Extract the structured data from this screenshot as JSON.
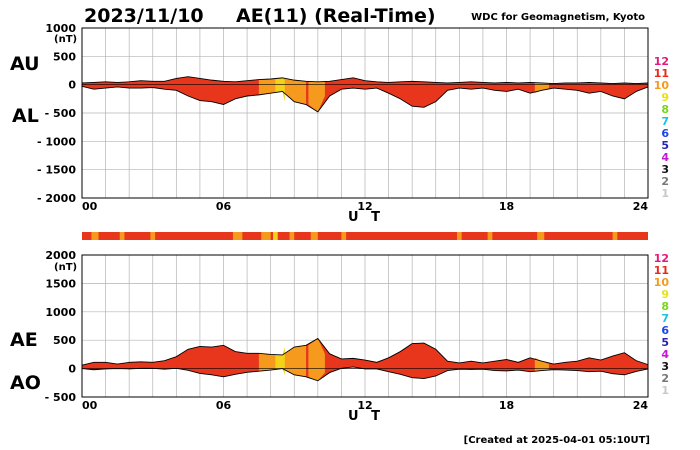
{
  "header": {
    "date": "2023/11/10",
    "title": "AE(11) (Real-Time)",
    "source": "WDC for Geomagnetism, Kyoto"
  },
  "footer": {
    "created": "[Created at 2025-04-01 05:10UT]"
  },
  "legend": {
    "levels": [
      {
        "label": "12",
        "color": "#e4197c"
      },
      {
        "label": "11",
        "color": "#e82a18"
      },
      {
        "label": "10",
        "color": "#f59a1c"
      },
      {
        "label": "9",
        "color": "#e6e21a"
      },
      {
        "label": "8",
        "color": "#78d61a"
      },
      {
        "label": "7",
        "color": "#1ac2e6"
      },
      {
        "label": "6",
        "color": "#1a46e6"
      },
      {
        "label": "5",
        "color": "#2a24b4"
      },
      {
        "label": "4",
        "color": "#c41ad6"
      },
      {
        "label": "3",
        "color": "#111111"
      },
      {
        "label": "2",
        "color": "#777777"
      },
      {
        "label": "1",
        "color": "#c8c8c8"
      }
    ]
  },
  "colors": {
    "fill_main": "#e8361c",
    "fill_mid": "#f59a1c",
    "fill_low": "#f4d21a",
    "grid": "#b4b4b4"
  },
  "chart_data": [
    {
      "type": "area",
      "panel_labels": [
        "AU",
        "AL"
      ],
      "ylabel": "(nT)",
      "xlabel": "U T",
      "x_ticks": [
        "00",
        "06",
        "12",
        "18",
        "24"
      ],
      "y_ticks": [
        "1000",
        "500",
        "0",
        "- 500",
        "- 1000",
        "- 1500",
        "- 2000"
      ],
      "xlim": [
        0,
        24
      ],
      "ylim": [
        -2000,
        1000
      ],
      "grid": true,
      "x": [
        0,
        0.5,
        1,
        1.5,
        2,
        2.5,
        3,
        3.5,
        4,
        4.5,
        5,
        5.5,
        6,
        6.5,
        7,
        7.5,
        8,
        8.5,
        9,
        9.5,
        10,
        10.5,
        11,
        11.5,
        12,
        12.5,
        13,
        13.5,
        14,
        14.5,
        15,
        15.5,
        16,
        16.5,
        17,
        17.5,
        18,
        18.5,
        19,
        19.5,
        20,
        20.5,
        21,
        21.5,
        22,
        22.5,
        23,
        23.5,
        24
      ],
      "series": [
        {
          "name": "AU",
          "values": [
            30,
            40,
            50,
            40,
            50,
            70,
            60,
            60,
            110,
            140,
            110,
            80,
            60,
            50,
            70,
            90,
            100,
            120,
            80,
            60,
            50,
            60,
            90,
            120,
            70,
            50,
            40,
            50,
            60,
            50,
            40,
            30,
            40,
            50,
            40,
            30,
            40,
            30,
            40,
            30,
            20,
            30,
            30,
            40,
            30,
            20,
            30,
            20,
            30
          ]
        },
        {
          "name": "AL",
          "values": [
            -30,
            -80,
            -60,
            -40,
            -60,
            -60,
            -50,
            -80,
            -100,
            -200,
            -280,
            -300,
            -350,
            -250,
            -200,
            -180,
            -150,
            -120,
            -300,
            -350,
            -480,
            -200,
            -80,
            -60,
            -80,
            -60,
            -150,
            -250,
            -380,
            -400,
            -300,
            -100,
            -60,
            -80,
            -60,
            -100,
            -120,
            -80,
            -150,
            -100,
            -60,
            -80,
            -100,
            -150,
            -120,
            -200,
            -250,
            -120,
            -40
          ]
        }
      ]
    },
    {
      "type": "area",
      "panel_labels": [
        "AE",
        "AO"
      ],
      "ylabel": "(nT)",
      "xlabel": "U T",
      "x_ticks": [
        "00",
        "06",
        "12",
        "18",
        "24"
      ],
      "y_ticks": [
        "2000",
        "1500",
        "1000",
        "500",
        "0",
        "- 500"
      ],
      "xlim": [
        0,
        24
      ],
      "ylim": [
        -500,
        2000
      ],
      "grid": true,
      "x": [
        0,
        0.5,
        1,
        1.5,
        2,
        2.5,
        3,
        3.5,
        4,
        4.5,
        5,
        5.5,
        6,
        6.5,
        7,
        7.5,
        8,
        8.5,
        9,
        9.5,
        10,
        10.5,
        11,
        11.5,
        12,
        12.5,
        13,
        13.5,
        14,
        14.5,
        15,
        15.5,
        16,
        16.5,
        17,
        17.5,
        18,
        18.5,
        19,
        19.5,
        20,
        20.5,
        21,
        21.5,
        22,
        22.5,
        23,
        23.5,
        24
      ],
      "series": [
        {
          "name": "AE",
          "values": [
            60,
            110,
            110,
            80,
            110,
            120,
            110,
            140,
            210,
            340,
            390,
            380,
            410,
            300,
            270,
            270,
            250,
            240,
            380,
            410,
            530,
            260,
            170,
            180,
            150,
            110,
            190,
            300,
            440,
            450,
            340,
            130,
            100,
            130,
            100,
            130,
            160,
            110,
            190,
            130,
            80,
            110,
            130,
            190,
            150,
            220,
            280,
            140,
            70
          ]
        },
        {
          "name": "AO",
          "values": [
            0,
            -20,
            -5,
            0,
            -5,
            5,
            5,
            -10,
            5,
            -30,
            -85,
            -110,
            -145,
            -100,
            -65,
            -45,
            -25,
            0,
            -110,
            -145,
            -215,
            -70,
            5,
            30,
            -5,
            -5,
            -55,
            -100,
            -160,
            -175,
            -130,
            -35,
            -10,
            -15,
            -10,
            -35,
            -40,
            -25,
            -55,
            -35,
            -20,
            -25,
            -35,
            -55,
            -45,
            -90,
            -110,
            -50,
            -5
          ]
        }
      ]
    }
  ]
}
